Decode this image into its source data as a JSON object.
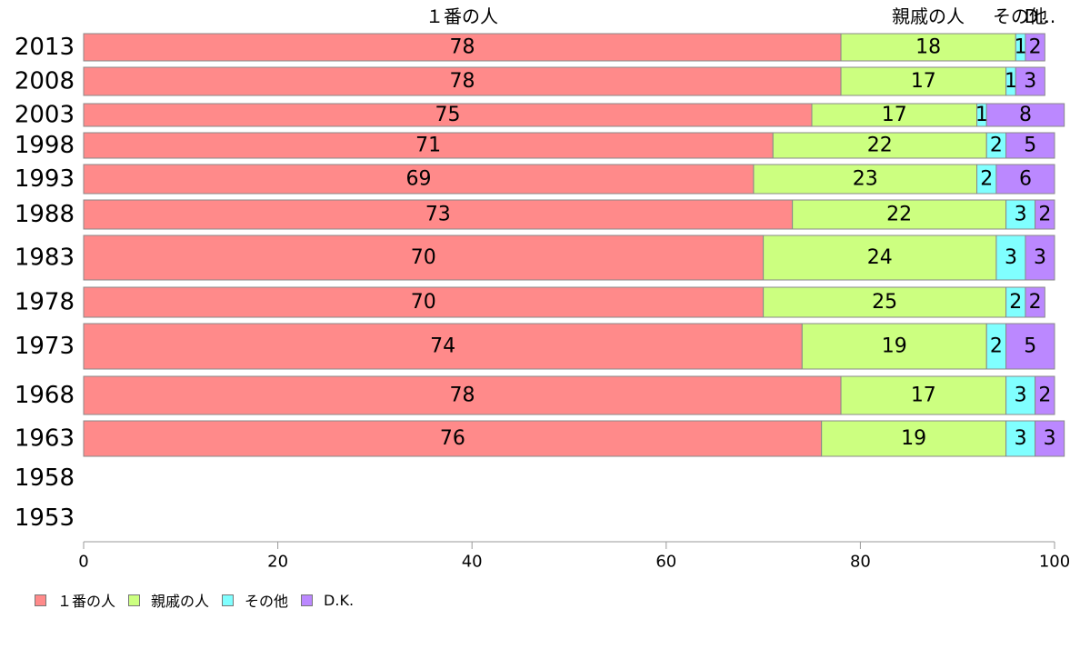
{
  "chart_data": {
    "type": "bar",
    "orientation": "horizontal",
    "stacked": true,
    "categories": [
      "2013",
      "2008",
      "2003",
      "1998",
      "1993",
      "1988",
      "1983",
      "1978",
      "1973",
      "1968",
      "1963",
      "1958",
      "1953"
    ],
    "series": [
      {
        "name": "１番の人",
        "color": "#ff8a8a",
        "values": [
          78,
          78,
          75,
          71,
          69,
          73,
          70,
          70,
          74,
          78,
          76,
          null,
          null
        ]
      },
      {
        "name": "親戚の人",
        "color": "#ccff80",
        "values": [
          18,
          17,
          17,
          22,
          23,
          22,
          24,
          25,
          19,
          17,
          19,
          null,
          null
        ]
      },
      {
        "name": "その他",
        "color": "#80ffff",
        "values": [
          1,
          1,
          1,
          2,
          2,
          3,
          3,
          2,
          2,
          3,
          3,
          null,
          null
        ]
      },
      {
        "name": "D.K.",
        "color": "#bb88ff",
        "values": [
          2,
          3,
          8,
          5,
          6,
          2,
          3,
          2,
          5,
          2,
          3,
          null,
          null
        ]
      }
    ],
    "top_labels": [
      "１番の人",
      "親戚の人",
      "その他",
      "D..."
    ],
    "xlim": [
      0,
      100
    ],
    "xticks": [
      "0",
      "20",
      "40",
      "60",
      "80",
      "100"
    ],
    "grid": false,
    "legend_position": "bottom-left"
  }
}
